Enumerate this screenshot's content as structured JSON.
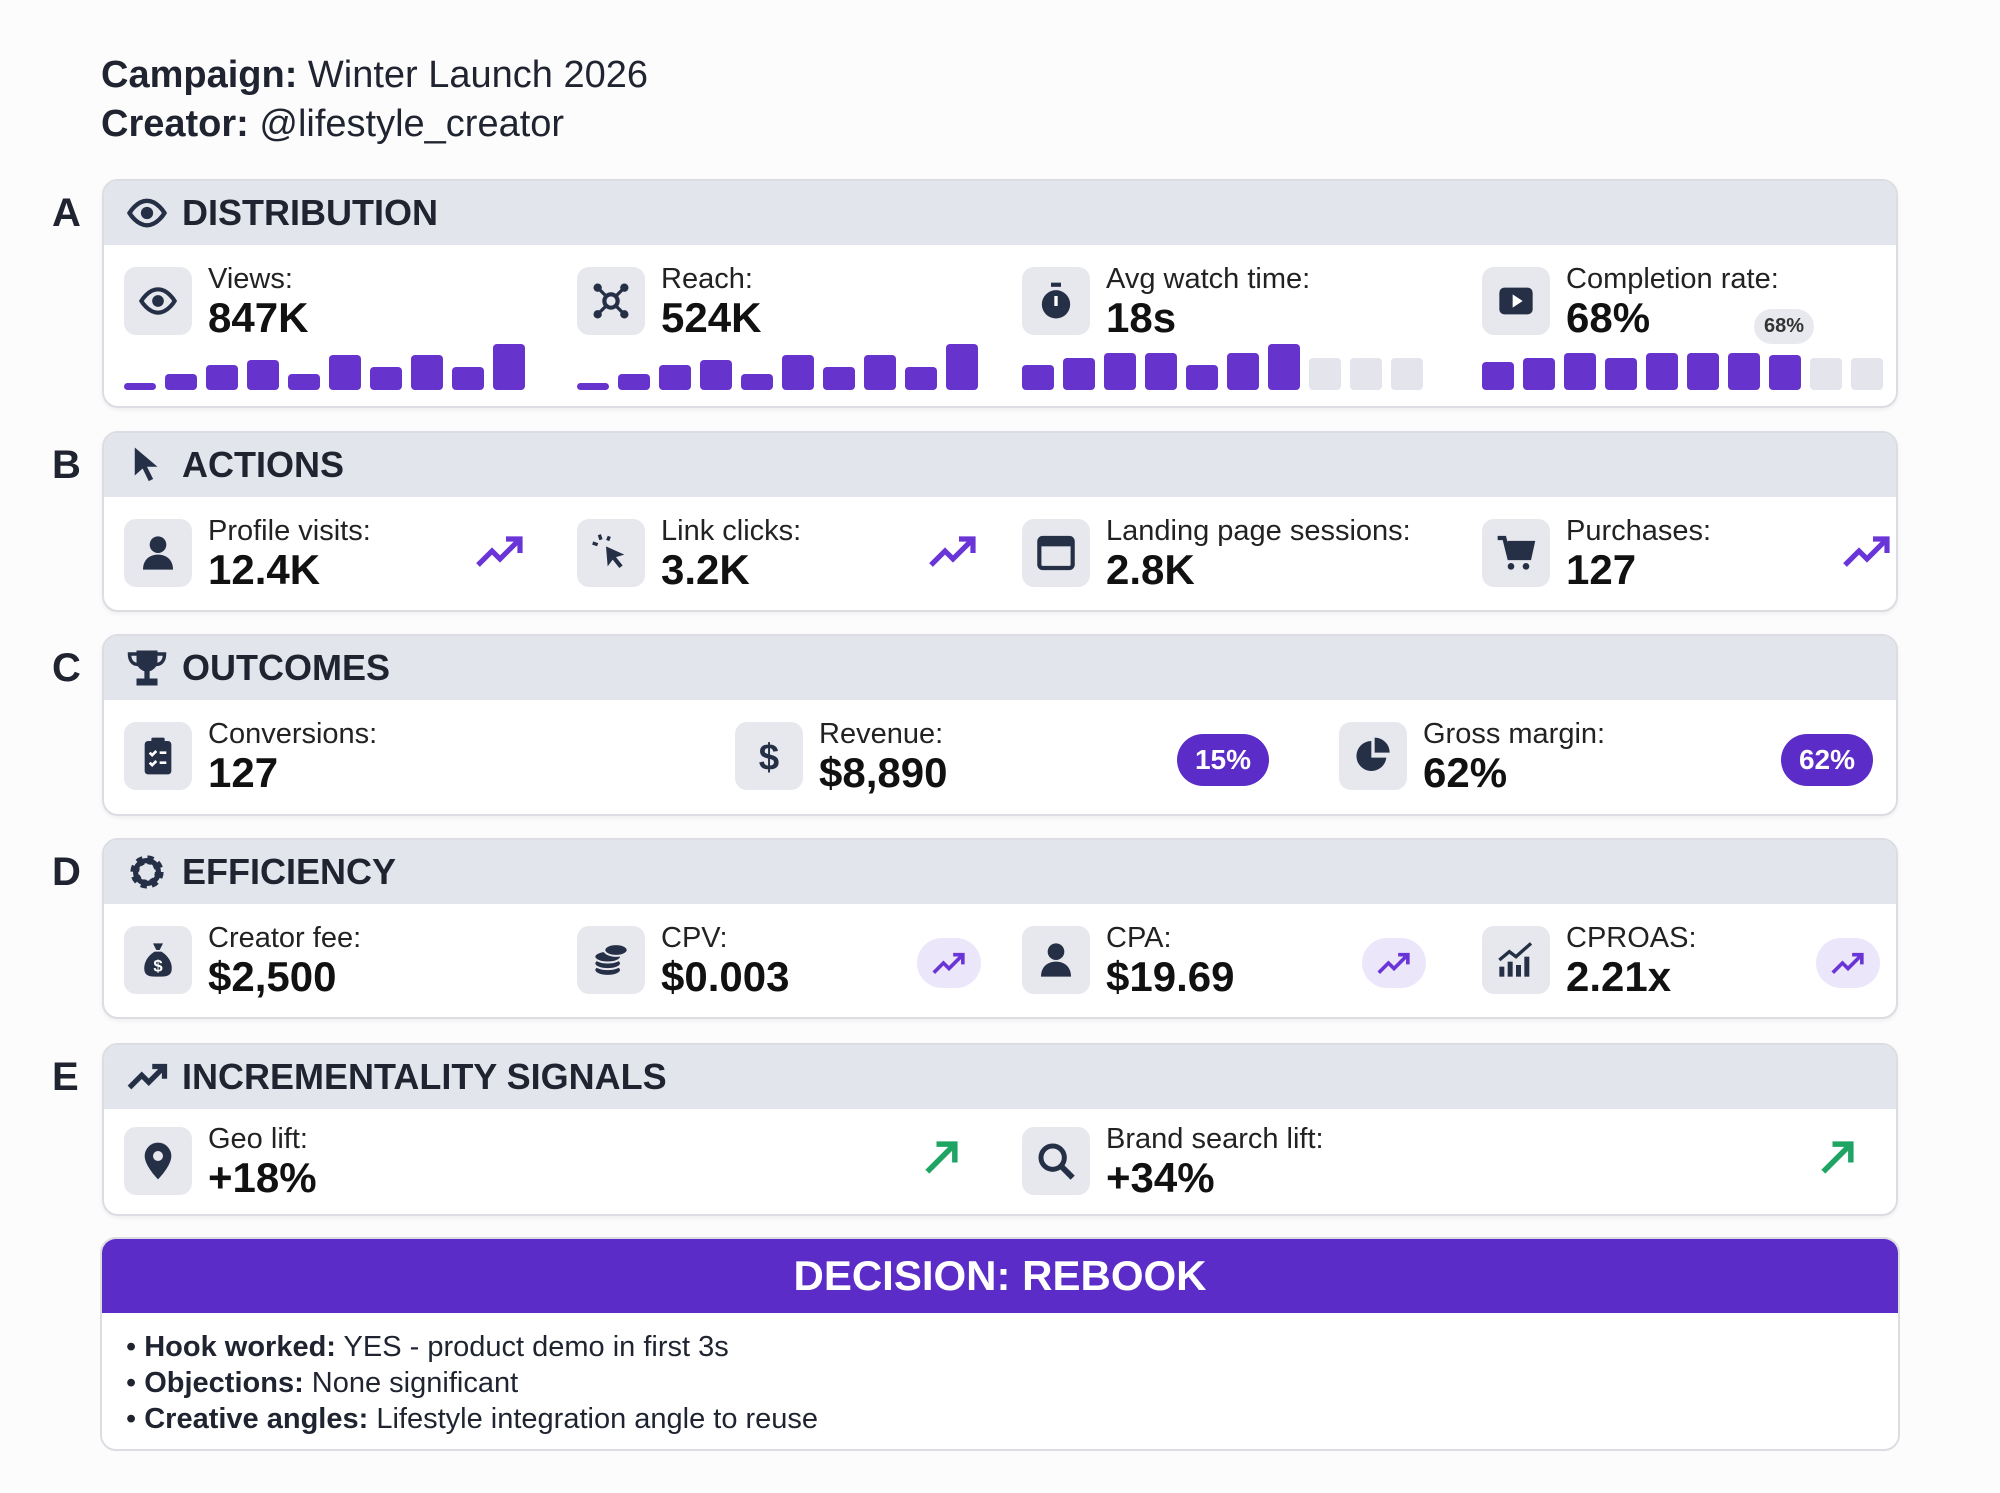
{
  "header": {
    "campaign_label": "Campaign:",
    "campaign": "Winter Launch 2026",
    "creator_label": "Creator:",
    "creator": "@lifestyle_creator"
  },
  "accent": "#5b2cc7",
  "sections": {
    "A": {
      "letter": "A",
      "title": "DISTRIBUTION",
      "icon": "eye-icon",
      "metrics": [
        {
          "label": "Views:",
          "value": "847K",
          "icon": "eye-icon",
          "spark": [
            0.15,
            0.35,
            0.55,
            0.65,
            0.35,
            0.75,
            0.5,
            0.75,
            0.5,
            1.0
          ]
        },
        {
          "label": "Reach:",
          "value": "524K",
          "icon": "network-icon",
          "spark": [
            0.15,
            0.35,
            0.55,
            0.65,
            0.35,
            0.75,
            0.5,
            0.75,
            0.5,
            1.0
          ]
        },
        {
          "label": "Avg watch time:",
          "value": "18s",
          "icon": "stopwatch-icon",
          "spark": [
            0.55,
            0.7,
            0.8,
            0.8,
            0.55,
            0.8,
            1.0,
            0,
            0,
            0
          ]
        },
        {
          "label": "Completion rate:",
          "value": "68%",
          "icon": "play-icon",
          "spark": [
            0.6,
            0.7,
            0.8,
            0.7,
            0.8,
            0.8,
            0.8,
            0.75,
            0,
            0
          ],
          "marker": "68%"
        }
      ]
    },
    "B": {
      "letter": "B",
      "title": "ACTIONS",
      "icon": "cursor-icon",
      "metrics": [
        {
          "label": "Profile visits:",
          "value": "12.4K",
          "icon": "user-icon",
          "trend": "up"
        },
        {
          "label": "Link clicks:",
          "value": "3.2K",
          "icon": "click-icon",
          "trend": "up"
        },
        {
          "label": "Landing page sessions:",
          "value": "2.8K",
          "icon": "browser-icon"
        },
        {
          "label": "Purchases:",
          "value": "127",
          "icon": "cart-icon",
          "trend": "up"
        }
      ]
    },
    "C": {
      "letter": "C",
      "title": "OUTCOMES",
      "icon": "trophy-icon",
      "metrics": [
        {
          "label": "Conversions:",
          "value": "127",
          "icon": "clipboard-icon"
        },
        {
          "label": "Revenue:",
          "value": "$8,890",
          "icon": "dollar-icon",
          "badge": "15%"
        },
        {
          "label": "Gross margin:",
          "value": "62%",
          "icon": "pie-icon",
          "badge": "62%"
        }
      ]
    },
    "D": {
      "letter": "D",
      "title": "EFFICIENCY",
      "icon": "gear-icon",
      "metrics": [
        {
          "label": "Creator fee:",
          "value": "$2,500",
          "icon": "money-bag-icon"
        },
        {
          "label": "CPV:",
          "value": "$0.003",
          "icon": "coins-icon",
          "trend": "up"
        },
        {
          "label": "CPA:",
          "value": "$19.69",
          "icon": "user-icon",
          "trend": "up"
        },
        {
          "label": "CPROAS:",
          "value": "2.21x",
          "icon": "bar-growth-icon",
          "trend": "up"
        }
      ]
    },
    "E": {
      "letter": "E",
      "title": "INCREMENTALITY SIGNALS",
      "icon": "trend-icon",
      "metrics": [
        {
          "label": "Geo lift:",
          "value": "+18%",
          "icon": "pin-icon",
          "trend": "up",
          "trend_color": "#1fa463"
        },
        {
          "label": "Brand search lift:",
          "value": "+34%",
          "icon": "search-icon",
          "trend": "up",
          "trend_color": "#1fa463"
        }
      ]
    }
  },
  "decision": {
    "title": "DECISION: REBOOK",
    "notes": [
      {
        "k": "Hook worked:",
        "v": "YES - product demo in first 3s"
      },
      {
        "k": "Objections:",
        "v": "None significant"
      },
      {
        "k": "Creative angles:",
        "v": "Lifestyle integration angle to reuse"
      }
    ]
  }
}
